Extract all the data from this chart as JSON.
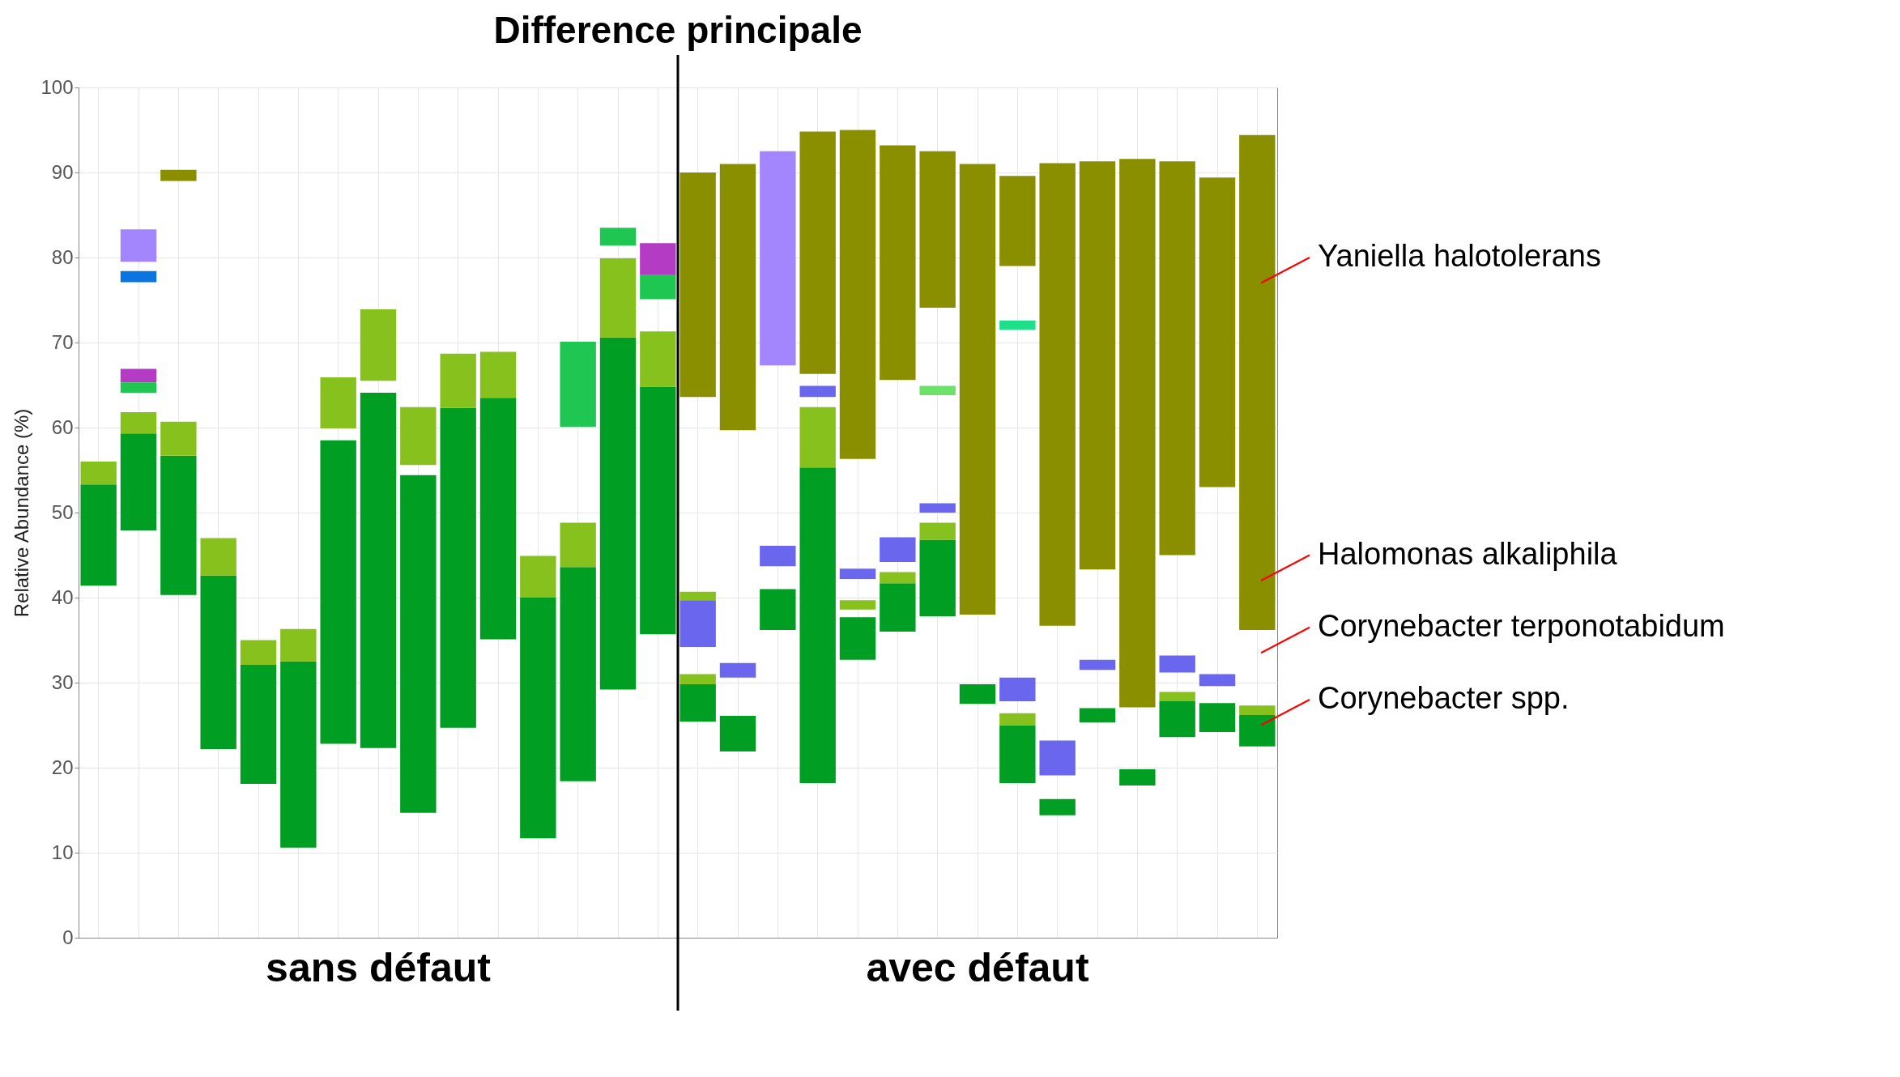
{
  "chart_data": {
    "type": "bar",
    "title": "Difference principale",
    "ylabel": "Relative Abundance (%)",
    "categories": [
      null,
      null,
      null,
      null,
      null,
      null,
      null,
      null,
      null,
      null,
      null,
      null,
      null,
      null,
      null,
      null,
      null,
      null,
      null,
      null,
      null,
      null,
      null,
      null,
      null,
      null,
      null,
      null,
      null,
      null
    ],
    "ylim": [
      0,
      100
    ],
    "yticks": [
      0,
      10,
      20,
      30,
      40,
      50,
      60,
      70,
      80,
      90,
      100
    ],
    "grid": true,
    "annotations": [
      "sans défaut",
      "avec défaut",
      "Yaniella halotolerans",
      "Halomonas alkaliphila",
      "Corynebacter terponotabidum",
      "Corynebacter spp."
    ],
    "series": [
      {
        "color": "#009e22",
        "base": [
          41.4,
          47.9,
          40.3,
          22.2,
          18.1,
          10.6,
          22.8,
          22.3,
          14.7,
          24.7,
          35.1,
          11.7,
          18.4,
          29.2,
          35.7,
          25.4,
          21.9,
          36.2,
          18.2,
          32.7,
          36.0,
          37.8,
          27.5,
          18.2,
          14.4,
          25.3,
          17.9,
          23.6,
          24.2,
          22.5
        ],
        "values": [
          11.9,
          11.4,
          16.4,
          20.4,
          14.0,
          21.9,
          35.7,
          41.8,
          39.7,
          37.6,
          28.4,
          28.3,
          25.2,
          41.4,
          29.1,
          4.4,
          4.2,
          4.8,
          37.1,
          5.0,
          5.7,
          9.0,
          2.3,
          6.8,
          1.9,
          1.7,
          1.9,
          4.2,
          3.4,
          3.7
        ]
      },
      {
        "color": "#86c11e",
        "base": [
          53.3,
          59.3,
          56.7,
          42.6,
          32.1,
          32.5,
          59.9,
          65.5,
          55.6,
          62.3,
          63.5,
          40.0,
          43.6,
          70.6,
          64.8,
          29.8,
          null,
          null,
          55.3,
          38.6,
          41.7,
          46.8,
          null,
          25.0,
          null,
          null,
          null,
          27.8,
          null,
          26.2
        ],
        "values": [
          2.7,
          2.5,
          4.0,
          4.4,
          2.9,
          3.8,
          6.0,
          8.4,
          6.8,
          6.4,
          5.4,
          4.9,
          5.2,
          9.3,
          6.5,
          1.2,
          null,
          null,
          7.1,
          1.1,
          1.3,
          2.0,
          null,
          1.4,
          null,
          null,
          null,
          1.1,
          null,
          1.1
        ]
      },
      {
        "color": "#86c11e",
        "base": [
          null,
          null,
          null,
          null,
          null,
          null,
          null,
          null,
          null,
          null,
          null,
          null,
          null,
          null,
          null,
          39.7,
          null,
          null,
          null,
          null,
          null,
          null,
          null,
          null,
          null,
          null,
          null,
          null,
          null,
          null
        ],
        "values": [
          null,
          null,
          null,
          null,
          null,
          null,
          null,
          null,
          null,
          null,
          null,
          null,
          null,
          null,
          null,
          1.0,
          null,
          null,
          null,
          null,
          null,
          null,
          null,
          null,
          null,
          null,
          null,
          null,
          null,
          null
        ]
      },
      {
        "color": "#8a8f00",
        "base": [
          null,
          null,
          89.0,
          null,
          null,
          null,
          null,
          null,
          null,
          null,
          null,
          null,
          null,
          null,
          null,
          63.6,
          59.7,
          null,
          66.3,
          56.3,
          65.6,
          74.1,
          38.0,
          79.0,
          36.7,
          43.3,
          27.1,
          45.0,
          53.0,
          36.2
        ],
        "values": [
          null,
          null,
          1.3,
          null,
          null,
          null,
          null,
          null,
          null,
          null,
          null,
          null,
          null,
          null,
          null,
          26.4,
          31.3,
          null,
          28.5,
          38.7,
          27.6,
          18.4,
          53.0,
          10.6,
          54.4,
          48.0,
          64.5,
          46.3,
          36.4,
          58.2
        ]
      },
      {
        "color": "#a385fd",
        "base": [
          null,
          79.5,
          null,
          null,
          null,
          null,
          null,
          null,
          null,
          null,
          null,
          null,
          null,
          null,
          null,
          null,
          null,
          67.3,
          null,
          null,
          null,
          null,
          null,
          null,
          null,
          null,
          null,
          null,
          null,
          null
        ],
        "values": [
          null,
          3.8,
          null,
          null,
          null,
          null,
          null,
          null,
          null,
          null,
          null,
          null,
          null,
          null,
          null,
          null,
          null,
          25.2,
          null,
          null,
          null,
          null,
          null,
          null,
          null,
          null,
          null,
          null,
          null,
          null
        ]
      },
      {
        "color": "#0a74e0",
        "base": [
          null,
          77.1,
          null,
          null,
          null,
          null,
          null,
          null,
          null,
          null,
          null,
          null,
          null,
          null,
          null,
          null,
          null,
          null,
          null,
          null,
          null,
          null,
          null,
          null,
          null,
          null,
          null,
          null,
          null,
          null
        ],
        "values": [
          null,
          1.3,
          null,
          null,
          null,
          null,
          null,
          null,
          null,
          null,
          null,
          null,
          null,
          null,
          null,
          null,
          null,
          null,
          null,
          null,
          null,
          null,
          null,
          null,
          null,
          null,
          null,
          null,
          null,
          null
        ]
      },
      {
        "color": "#b43bc3",
        "base": [
          null,
          65.3,
          null,
          null,
          null,
          null,
          null,
          null,
          null,
          null,
          null,
          null,
          null,
          null,
          78.0,
          null,
          null,
          null,
          null,
          null,
          null,
          null,
          null,
          null,
          null,
          null,
          null,
          null,
          null,
          null
        ],
        "values": [
          null,
          1.6,
          null,
          null,
          null,
          null,
          null,
          null,
          null,
          null,
          null,
          null,
          null,
          null,
          3.7,
          null,
          null,
          null,
          null,
          null,
          null,
          null,
          null,
          null,
          null,
          null,
          null,
          null,
          null,
          null
        ]
      },
      {
        "color": "#20c652",
        "base": [
          null,
          64.1,
          null,
          null,
          null,
          null,
          null,
          null,
          null,
          null,
          null,
          null,
          60.1,
          81.4,
          75.1,
          null,
          null,
          null,
          null,
          null,
          null,
          null,
          null,
          null,
          null,
          null,
          null,
          null,
          null,
          null
        ],
        "values": [
          null,
          1.2,
          null,
          null,
          null,
          null,
          null,
          null,
          null,
          null,
          null,
          null,
          10.0,
          2.1,
          2.9,
          null,
          null,
          null,
          null,
          null,
          null,
          null,
          null,
          null,
          null,
          null,
          null,
          null,
          null,
          null
        ]
      },
      {
        "color": "#6a67ee",
        "base": [
          null,
          null,
          null,
          null,
          null,
          null,
          null,
          null,
          null,
          null,
          null,
          null,
          null,
          null,
          null,
          34.2,
          30.6,
          43.7,
          63.6,
          42.2,
          44.2,
          50.0,
          null,
          27.8,
          19.1,
          31.5,
          null,
          31.2,
          29.6,
          null
        ],
        "values": [
          null,
          null,
          null,
          null,
          null,
          null,
          null,
          null,
          null,
          null,
          null,
          null,
          null,
          null,
          null,
          5.5,
          1.7,
          2.4,
          1.3,
          1.2,
          2.9,
          1.1,
          null,
          2.8,
          4.1,
          1.2,
          null,
          2.0,
          1.4,
          null
        ]
      },
      {
        "color": "#1fe08a",
        "base": [
          null,
          null,
          null,
          null,
          null,
          null,
          null,
          null,
          null,
          null,
          null,
          null,
          null,
          null,
          null,
          null,
          null,
          null,
          null,
          null,
          null,
          null,
          null,
          71.5,
          null,
          null,
          null,
          null,
          null,
          null
        ],
        "values": [
          null,
          null,
          null,
          null,
          null,
          null,
          null,
          null,
          null,
          null,
          null,
          null,
          null,
          null,
          null,
          null,
          null,
          null,
          null,
          null,
          null,
          null,
          null,
          1.1,
          null,
          null,
          null,
          null,
          null,
          null
        ]
      },
      {
        "color": "#6ce26a",
        "base": [
          null,
          null,
          null,
          null,
          null,
          null,
          null,
          null,
          null,
          null,
          null,
          null,
          null,
          null,
          null,
          null,
          null,
          null,
          null,
          null,
          null,
          63.8,
          null,
          null,
          null,
          null,
          null,
          null,
          null,
          null
        ],
        "values": [
          null,
          null,
          null,
          null,
          null,
          null,
          null,
          null,
          null,
          null,
          null,
          null,
          null,
          null,
          null,
          null,
          null,
          null,
          null,
          null,
          null,
          1.1,
          null,
          null,
          null,
          null,
          null,
          null,
          null,
          null
        ]
      }
    ]
  }
}
